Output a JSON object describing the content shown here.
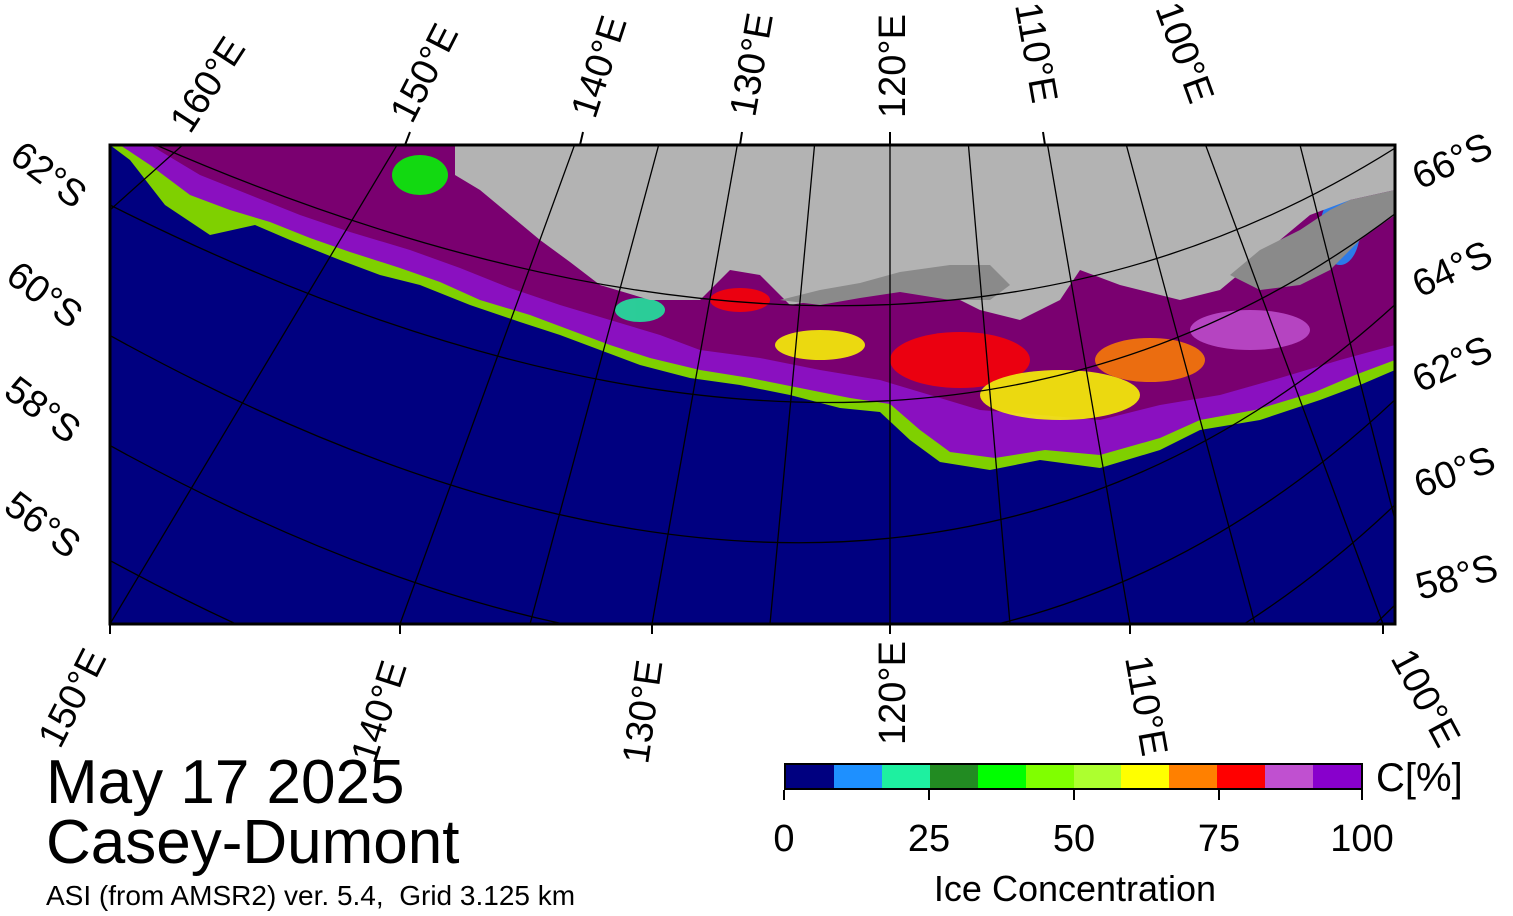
{
  "title": {
    "date": "May 17 2025",
    "region": "Casey-Dumont",
    "subtitle": "ASI (from AMSR2) ver. 5.4,  Grid 3.125 km"
  },
  "colors": {
    "ocean": "#000080",
    "land": "#b3b3b3",
    "ice_shelf": "#8a8a8a",
    "ice_dense": "#7a0070"
  },
  "colorbar": {
    "title": "Ice Concentration",
    "unit": "C[%]",
    "ticks": [
      "0",
      "25",
      "50",
      "75",
      "100"
    ],
    "bins": [
      "#000080",
      "#1e90ff",
      "#1ef0a0",
      "#228b22",
      "#00ff00",
      "#80ff00",
      "#adff2f",
      "#ffff00",
      "#ff8000",
      "#ff0000",
      "#c050d0",
      "#8800cc"
    ]
  },
  "labels": {
    "top_lon": [
      "160°E",
      "150°E",
      "140°E",
      "130°E",
      "120°E",
      "110°E",
      "100°E"
    ],
    "left_lat": [
      "62°S",
      "60°S",
      "58°S",
      "56°S"
    ],
    "right_lat": [
      "66°S",
      "64°S",
      "62°S",
      "60°S",
      "58°S"
    ],
    "bottom_lon": [
      "150°E",
      "140°E",
      "130°E",
      "120°E",
      "110°E",
      "100°E"
    ]
  }
}
